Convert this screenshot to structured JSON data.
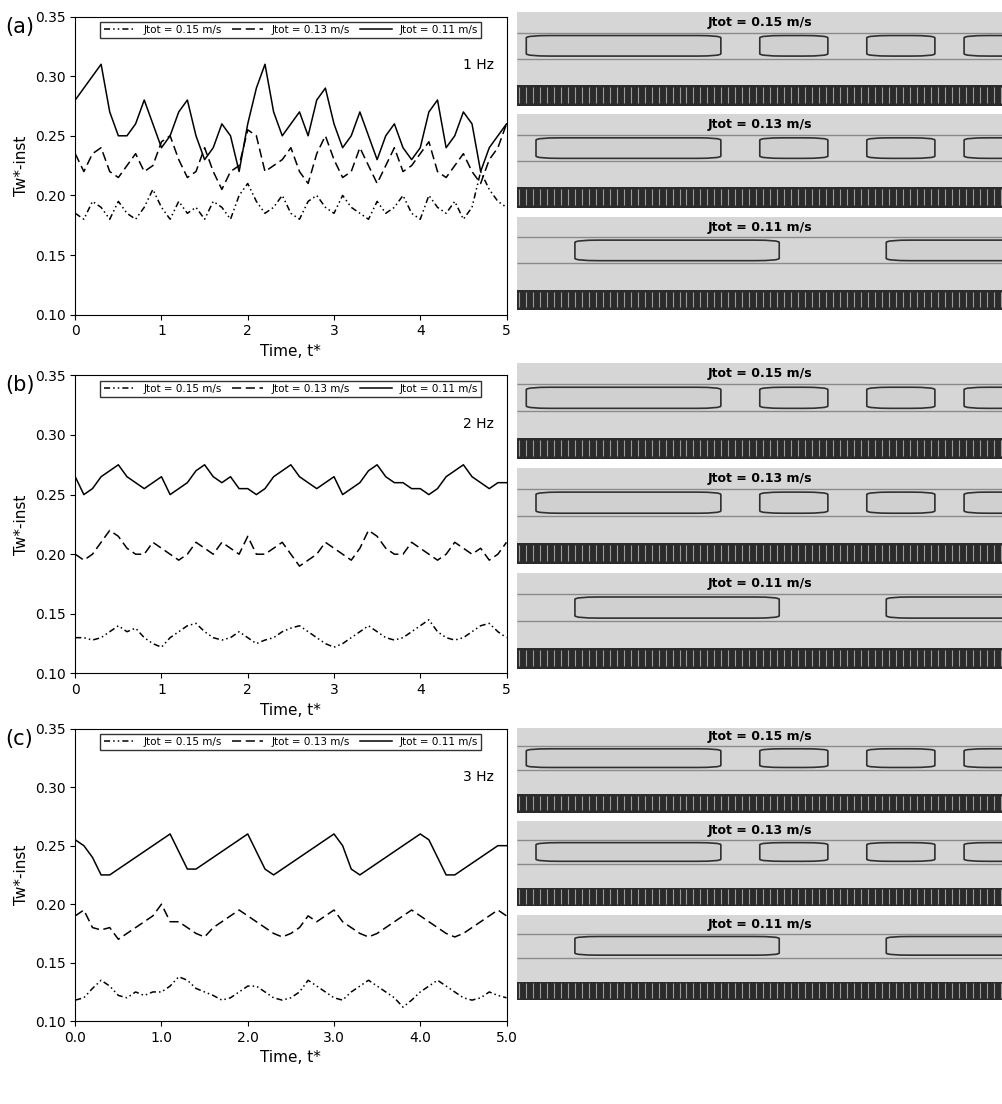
{
  "chart_data": [
    {
      "type": "line",
      "annotation": "1 Hz",
      "panel": "(a)",
      "x_label": "Time, t*",
      "y_label": "Tw*-inst",
      "legend": "upper center",
      "xlim": [
        0,
        5
      ],
      "xticks": [
        0,
        1,
        2,
        3,
        4,
        5
      ],
      "ylim": [
        0.1,
        0.35
      ],
      "yticks": [
        {
          "value": 0.1,
          "label": "0.10"
        },
        {
          "value": 0.15,
          "label": "0.15"
        },
        {
          "value": 0.2,
          "label": "0.20"
        },
        {
          "value": 0.25,
          "label": "0.25"
        },
        {
          "value": 0.3,
          "label": "0.30"
        },
        {
          "value": 0.35,
          "label": "0.35"
        }
      ],
      "x": [
        0,
        0.1,
        0.2,
        0.3,
        0.4,
        0.5,
        0.6,
        0.7,
        0.8,
        0.9,
        1.0,
        1.1,
        1.2,
        1.3,
        1.4,
        1.5,
        1.6,
        1.7,
        1.8,
        1.9,
        2.0,
        2.1,
        2.2,
        2.3,
        2.4,
        2.5,
        2.6,
        2.7,
        2.8,
        2.9,
        3.0,
        3.1,
        3.2,
        3.3,
        3.4,
        3.5,
        3.6,
        3.7,
        3.8,
        3.9,
        4.0,
        4.1,
        4.2,
        4.3,
        4.4,
        4.5,
        4.6,
        4.7,
        4.8,
        4.9,
        5.0
      ],
      "series": [
        {
          "name": "Jtot = 0.15 m/s",
          "color": "#000000",
          "line_style": "dashdotdot",
          "values": [
            0.185,
            0.18,
            0.195,
            0.19,
            0.18,
            0.195,
            0.185,
            0.18,
            0.19,
            0.205,
            0.19,
            0.18,
            0.195,
            0.185,
            0.19,
            0.18,
            0.195,
            0.19,
            0.18,
            0.2,
            0.21,
            0.195,
            0.185,
            0.19,
            0.2,
            0.185,
            0.18,
            0.195,
            0.2,
            0.19,
            0.185,
            0.2,
            0.19,
            0.185,
            0.18,
            0.195,
            0.185,
            0.19,
            0.2,
            0.185,
            0.18,
            0.2,
            0.19,
            0.185,
            0.195,
            0.18,
            0.19,
            0.22,
            0.205,
            0.195,
            0.19
          ]
        },
        {
          "name": "Jtot = 0.13 m/s",
          "color": "#000000",
          "line_style": "dashed",
          "values": [
            0.235,
            0.22,
            0.235,
            0.24,
            0.22,
            0.215,
            0.225,
            0.235,
            0.22,
            0.225,
            0.245,
            0.25,
            0.23,
            0.215,
            0.22,
            0.24,
            0.22,
            0.205,
            0.22,
            0.225,
            0.255,
            0.25,
            0.22,
            0.225,
            0.23,
            0.24,
            0.22,
            0.21,
            0.235,
            0.25,
            0.23,
            0.215,
            0.22,
            0.24,
            0.225,
            0.21,
            0.225,
            0.24,
            0.22,
            0.225,
            0.235,
            0.245,
            0.22,
            0.215,
            0.225,
            0.235,
            0.22,
            0.21,
            0.23,
            0.24,
            0.26
          ]
        },
        {
          "name": "Jtot = 0.11 m/s",
          "color": "#000000",
          "line_style": "solid",
          "values": [
            0.28,
            0.29,
            0.3,
            0.31,
            0.27,
            0.25,
            0.25,
            0.26,
            0.28,
            0.26,
            0.24,
            0.25,
            0.27,
            0.28,
            0.25,
            0.23,
            0.24,
            0.26,
            0.25,
            0.22,
            0.26,
            0.29,
            0.31,
            0.27,
            0.25,
            0.26,
            0.27,
            0.25,
            0.28,
            0.29,
            0.26,
            0.24,
            0.25,
            0.27,
            0.25,
            0.23,
            0.25,
            0.26,
            0.24,
            0.23,
            0.24,
            0.27,
            0.28,
            0.24,
            0.25,
            0.27,
            0.26,
            0.22,
            0.24,
            0.25,
            0.26
          ]
        }
      ]
    },
    {
      "type": "line",
      "annotation": "2 Hz",
      "panel": "(b)",
      "x_label": "Time, t*",
      "y_label": "Tw*-inst",
      "legend": "upper center",
      "xlim": [
        0,
        5
      ],
      "xticks": [
        0,
        1,
        2,
        3,
        4,
        5
      ],
      "ylim": [
        0.1,
        0.35
      ],
      "yticks": [
        {
          "value": 0.1,
          "label": "0.10"
        },
        {
          "value": 0.15,
          "label": "0.15"
        },
        {
          "value": 0.2,
          "label": "0.20"
        },
        {
          "value": 0.25,
          "label": "0.25"
        },
        {
          "value": 0.3,
          "label": "0.30"
        },
        {
          "value": 0.35,
          "label": "0.35"
        }
      ],
      "x": [
        0,
        0.1,
        0.2,
        0.3,
        0.4,
        0.5,
        0.6,
        0.7,
        0.8,
        0.9,
        1.0,
        1.1,
        1.2,
        1.3,
        1.4,
        1.5,
        1.6,
        1.7,
        1.8,
        1.9,
        2.0,
        2.1,
        2.2,
        2.3,
        2.4,
        2.5,
        2.6,
        2.7,
        2.8,
        2.9,
        3.0,
        3.1,
        3.2,
        3.3,
        3.4,
        3.5,
        3.6,
        3.7,
        3.8,
        3.9,
        4.0,
        4.1,
        4.2,
        4.3,
        4.4,
        4.5,
        4.6,
        4.7,
        4.8,
        4.9,
        5.0
      ],
      "series": [
        {
          "name": "Jtot = 0.15 m/s",
          "color": "#000000",
          "line_style": "dashdotdot",
          "values": [
            0.13,
            0.13,
            0.128,
            0.13,
            0.135,
            0.14,
            0.135,
            0.138,
            0.13,
            0.125,
            0.122,
            0.13,
            0.135,
            0.14,
            0.142,
            0.135,
            0.13,
            0.128,
            0.13,
            0.135,
            0.13,
            0.125,
            0.128,
            0.13,
            0.135,
            0.138,
            0.14,
            0.135,
            0.13,
            0.125,
            0.122,
            0.125,
            0.13,
            0.135,
            0.14,
            0.135,
            0.13,
            0.128,
            0.13,
            0.135,
            0.14,
            0.145,
            0.135,
            0.13,
            0.128,
            0.13,
            0.135,
            0.14,
            0.142,
            0.135,
            0.13
          ]
        },
        {
          "name": "Jtot = 0.13 m/s",
          "color": "#000000",
          "line_style": "dashed",
          "values": [
            0.2,
            0.195,
            0.2,
            0.21,
            0.22,
            0.215,
            0.205,
            0.2,
            0.2,
            0.21,
            0.205,
            0.2,
            0.195,
            0.2,
            0.21,
            0.205,
            0.2,
            0.21,
            0.205,
            0.2,
            0.215,
            0.2,
            0.2,
            0.205,
            0.21,
            0.2,
            0.19,
            0.195,
            0.2,
            0.21,
            0.205,
            0.2,
            0.195,
            0.205,
            0.22,
            0.215,
            0.205,
            0.2,
            0.2,
            0.21,
            0.205,
            0.2,
            0.195,
            0.2,
            0.21,
            0.205,
            0.2,
            0.205,
            0.195,
            0.2,
            0.21
          ]
        },
        {
          "name": "Jtot = 0.11 m/s",
          "color": "#000000",
          "line_style": "solid",
          "values": [
            0.265,
            0.25,
            0.255,
            0.265,
            0.27,
            0.275,
            0.265,
            0.26,
            0.255,
            0.26,
            0.265,
            0.25,
            0.255,
            0.26,
            0.27,
            0.275,
            0.265,
            0.26,
            0.265,
            0.255,
            0.255,
            0.25,
            0.255,
            0.265,
            0.27,
            0.275,
            0.265,
            0.26,
            0.255,
            0.26,
            0.265,
            0.25,
            0.255,
            0.26,
            0.27,
            0.275,
            0.265,
            0.26,
            0.26,
            0.255,
            0.255,
            0.25,
            0.255,
            0.265,
            0.27,
            0.275,
            0.265,
            0.26,
            0.255,
            0.26,
            0.26
          ]
        }
      ]
    },
    {
      "type": "line",
      "annotation": "3 Hz",
      "panel": "(c)",
      "x_label": "Time, t*",
      "y_label": "Tw*-inst",
      "legend": "upper center",
      "xlim": [
        0,
        5
      ],
      "xticks": [
        {
          "value": 0,
          "label": "0.0"
        },
        {
          "value": 1,
          "label": "1.0"
        },
        {
          "value": 2,
          "label": "2.0"
        },
        {
          "value": 3,
          "label": "3.0"
        },
        {
          "value": 4,
          "label": "4.0"
        },
        {
          "value": 5,
          "label": "5.0"
        }
      ],
      "ylim": [
        0.1,
        0.35
      ],
      "yticks": [
        {
          "value": 0.1,
          "label": "0.10"
        },
        {
          "value": 0.15,
          "label": "0.15"
        },
        {
          "value": 0.2,
          "label": "0.20"
        },
        {
          "value": 0.25,
          "label": "0.25"
        },
        {
          "value": 0.3,
          "label": "0.30"
        },
        {
          "value": 0.35,
          "label": "0.35"
        }
      ],
      "x": [
        0,
        0.1,
        0.2,
        0.3,
        0.4,
        0.5,
        0.6,
        0.7,
        0.8,
        0.9,
        1.0,
        1.1,
        1.2,
        1.3,
        1.4,
        1.5,
        1.6,
        1.7,
        1.8,
        1.9,
        2.0,
        2.1,
        2.2,
        2.3,
        2.4,
        2.5,
        2.6,
        2.7,
        2.8,
        2.9,
        3.0,
        3.1,
        3.2,
        3.3,
        3.4,
        3.5,
        3.6,
        3.7,
        3.8,
        3.9,
        4.0,
        4.1,
        4.2,
        4.3,
        4.4,
        4.5,
        4.6,
        4.7,
        4.8,
        4.9,
        5.0
      ],
      "series": [
        {
          "name": "Jtot = 0.15 m/s",
          "color": "#000000",
          "line_style": "dashdotdot",
          "values": [
            0.118,
            0.12,
            0.128,
            0.135,
            0.13,
            0.122,
            0.12,
            0.125,
            0.122,
            0.125,
            0.125,
            0.13,
            0.138,
            0.135,
            0.128,
            0.125,
            0.122,
            0.118,
            0.12,
            0.125,
            0.13,
            0.13,
            0.125,
            0.12,
            0.118,
            0.12,
            0.125,
            0.135,
            0.13,
            0.125,
            0.12,
            0.118,
            0.125,
            0.13,
            0.135,
            0.13,
            0.125,
            0.12,
            0.112,
            0.118,
            0.125,
            0.13,
            0.135,
            0.13,
            0.125,
            0.12,
            0.118,
            0.12,
            0.125,
            0.122,
            0.12
          ]
        },
        {
          "name": "Jtot = 0.13 m/s",
          "color": "#000000",
          "line_style": "dashed",
          "values": [
            0.19,
            0.195,
            0.18,
            0.178,
            0.18,
            0.17,
            0.175,
            0.18,
            0.185,
            0.19,
            0.2,
            0.185,
            0.185,
            0.18,
            0.175,
            0.172,
            0.18,
            0.185,
            0.19,
            0.195,
            0.19,
            0.185,
            0.18,
            0.175,
            0.172,
            0.175,
            0.18,
            0.19,
            0.185,
            0.19,
            0.195,
            0.185,
            0.18,
            0.175,
            0.172,
            0.175,
            0.18,
            0.185,
            0.19,
            0.195,
            0.19,
            0.185,
            0.18,
            0.175,
            0.172,
            0.175,
            0.18,
            0.185,
            0.19,
            0.195,
            0.19
          ]
        },
        {
          "name": "Jtot = 0.11 m/s",
          "color": "#000000",
          "line_style": "solid",
          "values": [
            0.255,
            0.25,
            0.24,
            0.225,
            0.225,
            0.23,
            0.235,
            0.24,
            0.245,
            0.25,
            0.255,
            0.26,
            0.245,
            0.23,
            0.23,
            0.235,
            0.24,
            0.245,
            0.25,
            0.255,
            0.26,
            0.245,
            0.23,
            0.225,
            0.23,
            0.235,
            0.24,
            0.245,
            0.25,
            0.255,
            0.26,
            0.25,
            0.23,
            0.225,
            0.23,
            0.235,
            0.24,
            0.245,
            0.25,
            0.255,
            0.26,
            0.255,
            0.24,
            0.225,
            0.225,
            0.23,
            0.235,
            0.24,
            0.245,
            0.25,
            0.25
          ]
        }
      ]
    }
  ],
  "images": [
    {
      "labels": [
        "Jtot = 0.15 m/s",
        "Jtot = 0.13 m/s",
        "Jtot = 0.11 m/s"
      ]
    },
    {
      "labels": [
        "Jtot = 0.15 m/s",
        "Jtot = 0.13 m/s",
        "Jtot = 0.11 m/s"
      ]
    },
    {
      "labels": [
        "Jtot = 0.15 m/s",
        "Jtot = 0.13 m/s",
        "Jtot = 0.11 m/s"
      ]
    }
  ]
}
